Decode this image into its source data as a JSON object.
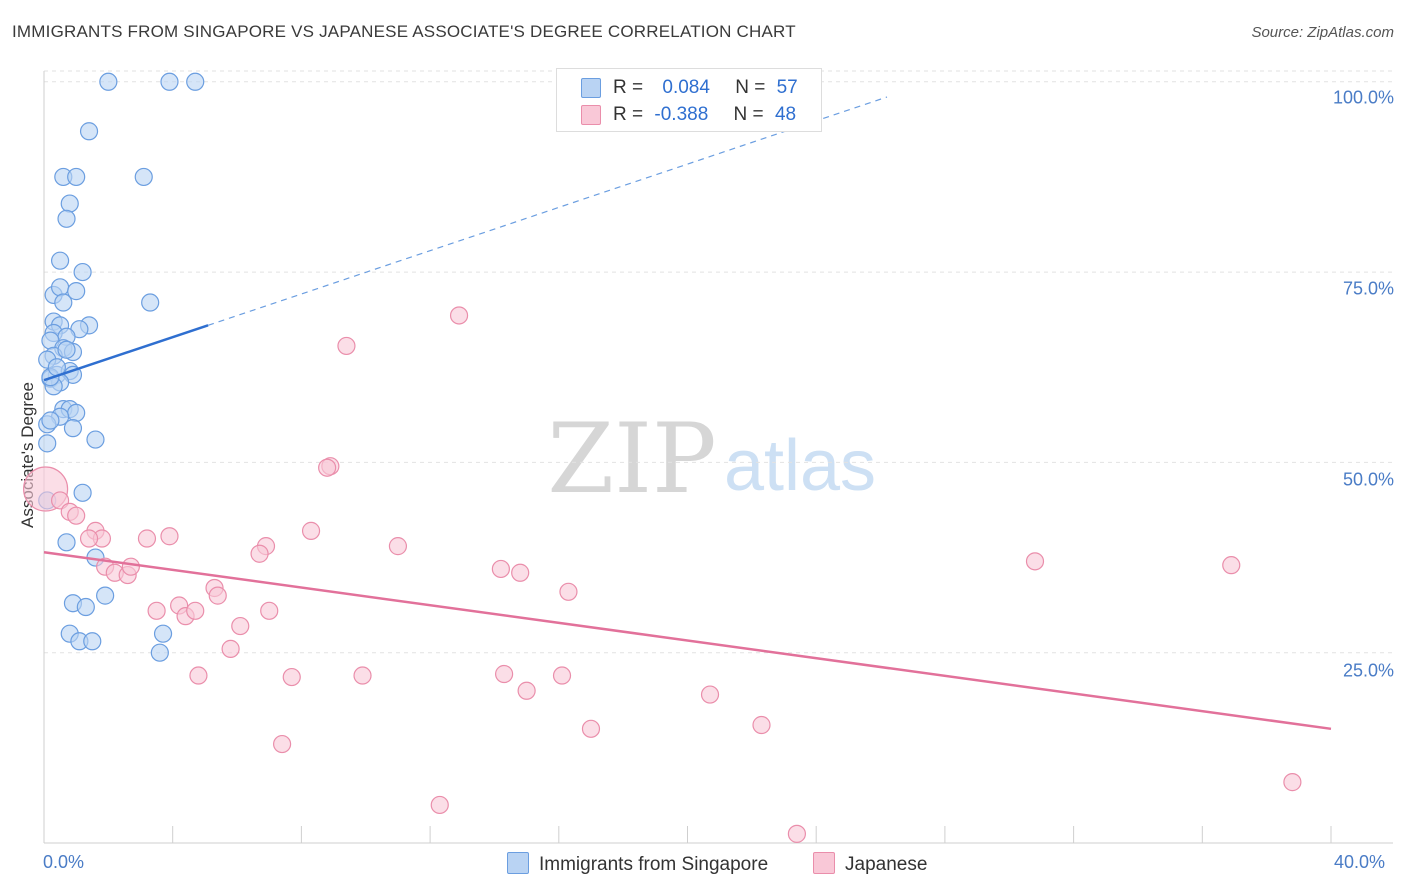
{
  "title": "IMMIGRANTS FROM SINGAPORE VS JAPANESE ASSOCIATE'S DEGREE CORRELATION CHART",
  "source": "Source: ZipAtlas.com",
  "watermark": {
    "zip": "ZIP",
    "atlas": "atlas"
  },
  "legend": {
    "r_label": "R =",
    "n_label": "N =",
    "rows": [
      {
        "r": "0.084",
        "n": "57",
        "fill": "#b9d3f3",
        "stroke": "#6b9ee0"
      },
      {
        "r": "-0.388",
        "n": "48",
        "fill": "#f9c8d7",
        "stroke": "#ea8eab"
      }
    ]
  },
  "bottom_legend": [
    {
      "label": "Immigrants from Singapore",
      "fill": "#b9d3f3",
      "stroke": "#6b9ee0"
    },
    {
      "label": "Japanese",
      "fill": "#f9c8d7",
      "stroke": "#ea8eab"
    }
  ],
  "chart_data": {
    "type": "scatter",
    "title": "IMMIGRANTS FROM SINGAPORE VS JAPANESE ASSOCIATE'S DEGREE CORRELATION CHART",
    "xlabel": "",
    "ylabel": "Associate's Degree",
    "xlim": [
      0,
      40
    ],
    "ylim": [
      0,
      102
    ],
    "x_tick_labels": [
      "0.0%",
      "40.0%"
    ],
    "y_ticks": [
      25,
      50,
      75,
      100
    ],
    "y_tick_labels": [
      "25.0%",
      "50.0%",
      "75.0%",
      "100.0%"
    ],
    "grid": true,
    "legend_position": "top-center",
    "series": [
      {
        "name": "Immigrants from Singapore",
        "color": "#6b9ee0",
        "fill": "#b9d3f3",
        "trend": {
          "x": [
            0,
            5.1
          ],
          "y": [
            60.8,
            68.0
          ],
          "extended_to": [
            26.2,
            98.0
          ],
          "dashed_extension": true
        },
        "points": [
          [
            2.0,
            100
          ],
          [
            3.9,
            100
          ],
          [
            4.7,
            100
          ],
          [
            1.4,
            93.5
          ],
          [
            0.6,
            87.5
          ],
          [
            1.0,
            87.5
          ],
          [
            3.1,
            87.5
          ],
          [
            0.8,
            84
          ],
          [
            0.7,
            82
          ],
          [
            0.5,
            76.5
          ],
          [
            1.2,
            75
          ],
          [
            0.3,
            72
          ],
          [
            0.5,
            73
          ],
          [
            1.0,
            72.5
          ],
          [
            0.6,
            71
          ],
          [
            3.3,
            71
          ],
          [
            0.3,
            68.5
          ],
          [
            0.5,
            68
          ],
          [
            1.4,
            68
          ],
          [
            0.3,
            67
          ],
          [
            1.1,
            67.5
          ],
          [
            0.7,
            66.5
          ],
          [
            0.2,
            66
          ],
          [
            0.6,
            65
          ],
          [
            0.9,
            64.5
          ],
          [
            0.3,
            64
          ],
          [
            0.1,
            63.5
          ],
          [
            0.4,
            61.5
          ],
          [
            0.8,
            62
          ],
          [
            0.9,
            61.5
          ],
          [
            0.2,
            61
          ],
          [
            0.5,
            60.5
          ],
          [
            0.3,
            60
          ],
          [
            0.6,
            57
          ],
          [
            0.8,
            57
          ],
          [
            1.0,
            56.5
          ],
          [
            0.5,
            56
          ],
          [
            0.1,
            55
          ],
          [
            0.9,
            54.5
          ],
          [
            1.6,
            53
          ],
          [
            0.1,
            52.5
          ],
          [
            1.2,
            46
          ],
          [
            0.1,
            45
          ],
          [
            0.7,
            39.5
          ],
          [
            1.6,
            37.5
          ],
          [
            0.9,
            31.5
          ],
          [
            1.3,
            31
          ],
          [
            1.9,
            32.5
          ],
          [
            0.8,
            27.5
          ],
          [
            1.1,
            26.5
          ],
          [
            1.5,
            26.5
          ],
          [
            3.7,
            27.5
          ],
          [
            3.6,
            25
          ],
          [
            0.2,
            61.2
          ],
          [
            0.4,
            62.5
          ],
          [
            0.7,
            64.8
          ],
          [
            0.2,
            55.5
          ]
        ]
      },
      {
        "name": "Japanese",
        "color": "#ea8eab",
        "fill": "#f9c8d7",
        "trend": {
          "x": [
            0,
            40
          ],
          "y": [
            38.2,
            15.0
          ]
        },
        "points": [
          [
            0.05,
            46.5
          ],
          [
            0.5,
            45
          ],
          [
            0.8,
            43.5
          ],
          [
            1.0,
            43
          ],
          [
            1.6,
            41
          ],
          [
            1.8,
            40
          ],
          [
            1.4,
            40
          ],
          [
            3.2,
            40
          ],
          [
            3.9,
            40.3
          ],
          [
            8.3,
            41
          ],
          [
            6.9,
            39
          ],
          [
            6.7,
            38
          ],
          [
            11.0,
            39
          ],
          [
            8.9,
            49.5
          ],
          [
            8.8,
            49.3
          ],
          [
            12.9,
            69.3
          ],
          [
            9.4,
            65.3
          ],
          [
            1.9,
            36.3
          ],
          [
            2.2,
            35.5
          ],
          [
            2.6,
            35.2
          ],
          [
            2.7,
            36.3
          ],
          [
            3.5,
            30.5
          ],
          [
            4.2,
            31.2
          ],
          [
            4.4,
            29.8
          ],
          [
            4.7,
            30.5
          ],
          [
            5.3,
            33.5
          ],
          [
            5.4,
            32.5
          ],
          [
            6.1,
            28.5
          ],
          [
            7.0,
            30.5
          ],
          [
            5.8,
            25.5
          ],
          [
            4.8,
            22
          ],
          [
            7.7,
            21.8
          ],
          [
            9.9,
            22
          ],
          [
            14.2,
            36
          ],
          [
            14.8,
            35.5
          ],
          [
            16.3,
            33
          ],
          [
            14.3,
            22.2
          ],
          [
            15.0,
            20
          ],
          [
            16.1,
            22
          ],
          [
            17.0,
            15
          ],
          [
            20.7,
            19.5
          ],
          [
            22.3,
            15.5
          ],
          [
            30.8,
            37
          ],
          [
            36.9,
            36.5
          ],
          [
            7.4,
            13
          ],
          [
            12.3,
            5
          ],
          [
            23.4,
            1.2
          ],
          [
            38.8,
            8
          ]
        ]
      }
    ]
  }
}
